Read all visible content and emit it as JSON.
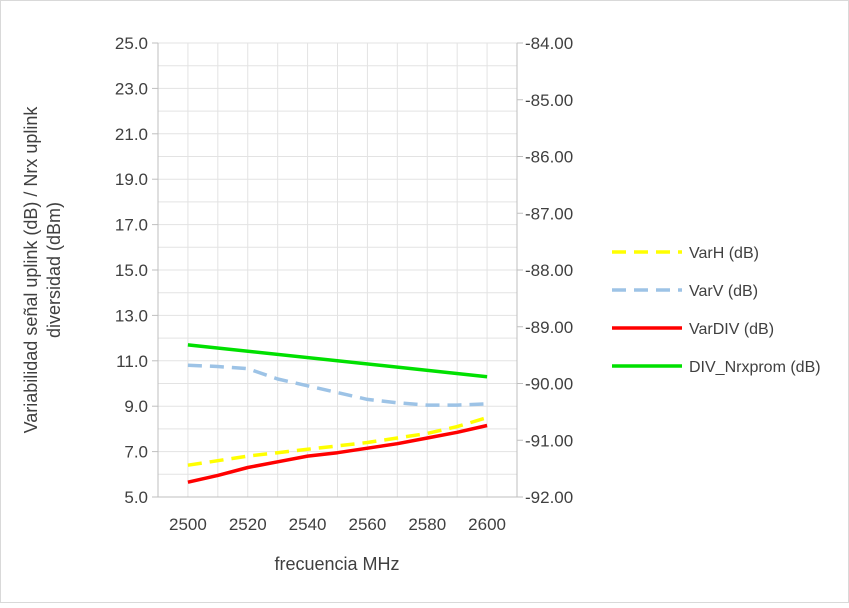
{
  "chart_data": {
    "type": "line",
    "title": "",
    "xlabel": "frecuencia MHz",
    "ylabel": "Variabilidad señal uplink (dB) / Nrx uplink diversidad (dBm)",
    "y2label": "",
    "x_ticks": [
      "2500",
      "2520",
      "2540",
      "2560",
      "2580",
      "2600"
    ],
    "xlim": [
      2490,
      2610
    ],
    "ylim": [
      5.0,
      25.0
    ],
    "y_ticks": [
      "5.0",
      "7.0",
      "9.0",
      "11.0",
      "13.0",
      "15.0",
      "17.0",
      "19.0",
      "21.0",
      "23.0",
      "25.0"
    ],
    "y2lim": [
      -92.0,
      -84.0
    ],
    "y2_ticks": [
      "-92.00",
      "-91.00",
      "-90.00",
      "-89.00",
      "-88.00",
      "-87.00",
      "-86.00",
      "-85.00",
      "-84.00"
    ],
    "grid": true,
    "legend_position": "right",
    "series": [
      {
        "name": "VarH (dB)",
        "axis": "left",
        "color": "#FFFF00",
        "dash": "dashed",
        "x": [
          2500,
          2510,
          2520,
          2530,
          2540,
          2550,
          2560,
          2570,
          2580,
          2590,
          2600
        ],
        "values": [
          6.4,
          6.6,
          6.8,
          6.95,
          7.1,
          7.25,
          7.4,
          7.6,
          7.8,
          8.1,
          8.5
        ]
      },
      {
        "name": "VarV (dB)",
        "axis": "left",
        "color": "#9DC3E6",
        "dash": "dashed",
        "x": [
          2500,
          2510,
          2520,
          2530,
          2540,
          2550,
          2560,
          2570,
          2580,
          2590,
          2600
        ],
        "values": [
          10.8,
          10.75,
          10.65,
          10.2,
          9.9,
          9.6,
          9.3,
          9.15,
          9.05,
          9.05,
          9.1
        ]
      },
      {
        "name": "VarDIV (dB)",
        "axis": "left",
        "color": "#FF0000",
        "dash": "solid",
        "x": [
          2500,
          2510,
          2520,
          2530,
          2540,
          2550,
          2560,
          2570,
          2580,
          2590,
          2600
        ],
        "values": [
          5.65,
          5.95,
          6.3,
          6.55,
          6.8,
          6.95,
          7.15,
          7.35,
          7.6,
          7.85,
          8.15
        ]
      },
      {
        "name": "DIV_Nrxprom (dB)",
        "axis": "left",
        "color": "#00E000",
        "dash": "solid",
        "x": [
          2500,
          2600
        ],
        "values": [
          11.7,
          10.3
        ]
      }
    ]
  }
}
